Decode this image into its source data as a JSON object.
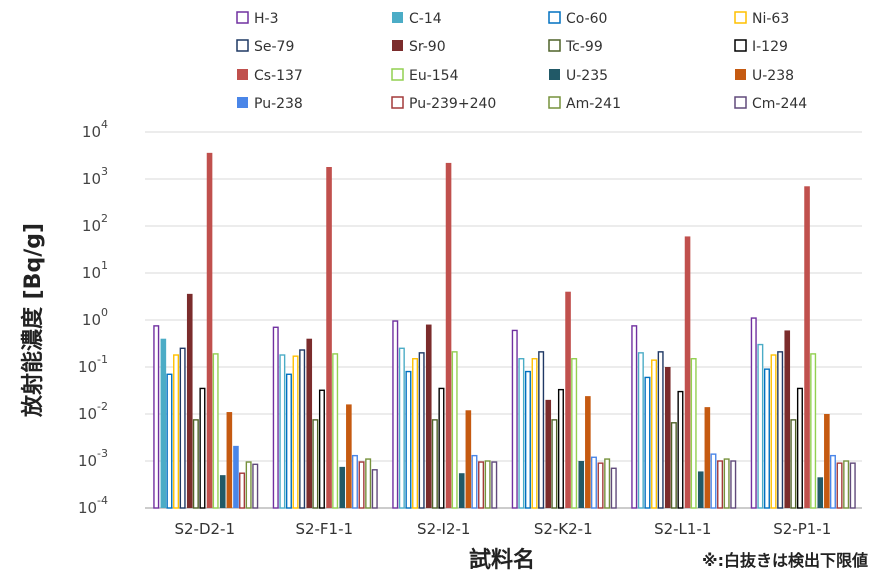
{
  "chart_data": {
    "type": "bar",
    "log_scale": true,
    "ylim": [
      0.0001,
      10000
    ],
    "ylabel": "放射能濃度 [Bq/g]",
    "xlabel": "試料名",
    "note": "※:白抜きは検出下限値",
    "yticks": [
      {
        "base": "10",
        "exp": "-4"
      },
      {
        "base": "10",
        "exp": "-3"
      },
      {
        "base": "10",
        "exp": "-2"
      },
      {
        "base": "10",
        "exp": "-1"
      },
      {
        "base": "10",
        "exp": "0"
      },
      {
        "base": "10",
        "exp": "1"
      },
      {
        "base": "10",
        "exp": "2"
      },
      {
        "base": "10",
        "exp": "3"
      },
      {
        "base": "10",
        "exp": "4"
      }
    ],
    "categories": [
      "S2-D2-1",
      "S2-F1-1",
      "S2-I2-1",
      "S2-K2-1",
      "S2-L1-1",
      "S2-P1-1"
    ],
    "legend_position": "top",
    "series": [
      {
        "name": "H-3",
        "color": "#7030A0",
        "values": [
          0.75,
          0.7,
          0.95,
          0.6,
          0.75,
          1.1
        ],
        "detected": [
          false,
          false,
          false,
          false,
          false,
          false
        ]
      },
      {
        "name": "C-14",
        "color": "#4BACC6",
        "values": [
          0.4,
          0.18,
          0.25,
          0.15,
          0.2,
          0.3
        ],
        "detected": [
          true,
          false,
          false,
          false,
          false,
          false
        ]
      },
      {
        "name": "Co-60",
        "color": "#0070C0",
        "values": [
          0.07,
          0.07,
          0.08,
          0.08,
          0.06,
          0.09
        ],
        "detected": [
          false,
          false,
          false,
          false,
          false,
          false
        ]
      },
      {
        "name": "Ni-63",
        "color": "#FFC000",
        "values": [
          0.18,
          0.17,
          0.15,
          0.15,
          0.14,
          0.18
        ],
        "detected": [
          false,
          false,
          false,
          false,
          false,
          false
        ]
      },
      {
        "name": "Se-79",
        "color": "#1F3864",
        "values": [
          0.25,
          0.23,
          0.2,
          0.21,
          0.21,
          0.21
        ],
        "detected": [
          false,
          false,
          false,
          false,
          false,
          false
        ]
      },
      {
        "name": "Sr-90",
        "color": "#7B2C2C",
        "values": [
          3.6,
          0.4,
          0.8,
          0.02,
          0.1,
          0.6
        ],
        "detected": [
          true,
          true,
          true,
          true,
          true,
          true
        ]
      },
      {
        "name": "Tc-99",
        "color": "#4F6228",
        "values": [
          0.0075,
          0.0075,
          0.0075,
          0.0075,
          0.0065,
          0.0075
        ],
        "detected": [
          false,
          false,
          false,
          false,
          false,
          false
        ]
      },
      {
        "name": "I-129",
        "color": "#000000",
        "values": [
          0.035,
          0.032,
          0.035,
          0.033,
          0.03,
          0.035
        ],
        "detected": [
          false,
          false,
          false,
          false,
          false,
          false
        ]
      },
      {
        "name": "Cs-137",
        "color": "#C0504D",
        "values": [
          3600,
          1800,
          2200,
          4,
          60,
          700
        ],
        "detected": [
          true,
          true,
          true,
          true,
          true,
          true
        ]
      },
      {
        "name": "Eu-154",
        "color": "#92D050",
        "values": [
          0.19,
          0.19,
          0.21,
          0.15,
          0.15,
          0.19
        ],
        "detected": [
          false,
          false,
          false,
          false,
          false,
          false
        ]
      },
      {
        "name": "U-235",
        "color": "#215967",
        "values": [
          0.0005,
          0.00075,
          0.00055,
          0.001,
          0.0006,
          0.00045
        ],
        "detected": [
          true,
          true,
          true,
          true,
          true,
          true
        ]
      },
      {
        "name": "U-238",
        "color": "#C55A11",
        "values": [
          0.011,
          0.016,
          0.012,
          0.024,
          0.014,
          0.01
        ],
        "detected": [
          true,
          true,
          true,
          true,
          true,
          true
        ]
      },
      {
        "name": "Pu-238",
        "color": "#4A86E8",
        "values": [
          0.0021,
          0.0013,
          0.0013,
          0.0012,
          0.0014,
          0.0013
        ],
        "detected": [
          true,
          false,
          false,
          false,
          false,
          false
        ]
      },
      {
        "name": "Pu-239+240",
        "color": "#A33A3A",
        "values": [
          0.00055,
          0.00095,
          0.00095,
          0.0009,
          0.001,
          0.0009
        ],
        "detected": [
          false,
          false,
          false,
          false,
          false,
          false
        ]
      },
      {
        "name": "Am-241",
        "color": "#76923C",
        "values": [
          0.00095,
          0.0011,
          0.001,
          0.0011,
          0.0011,
          0.001
        ],
        "detected": [
          false,
          false,
          false,
          false,
          false,
          false
        ]
      },
      {
        "name": "Cm-244",
        "color": "#604A7B",
        "values": [
          0.00085,
          0.00065,
          0.00095,
          0.0007,
          0.001,
          0.0009
        ],
        "detected": [
          false,
          false,
          false,
          false,
          false,
          false
        ]
      }
    ]
  }
}
